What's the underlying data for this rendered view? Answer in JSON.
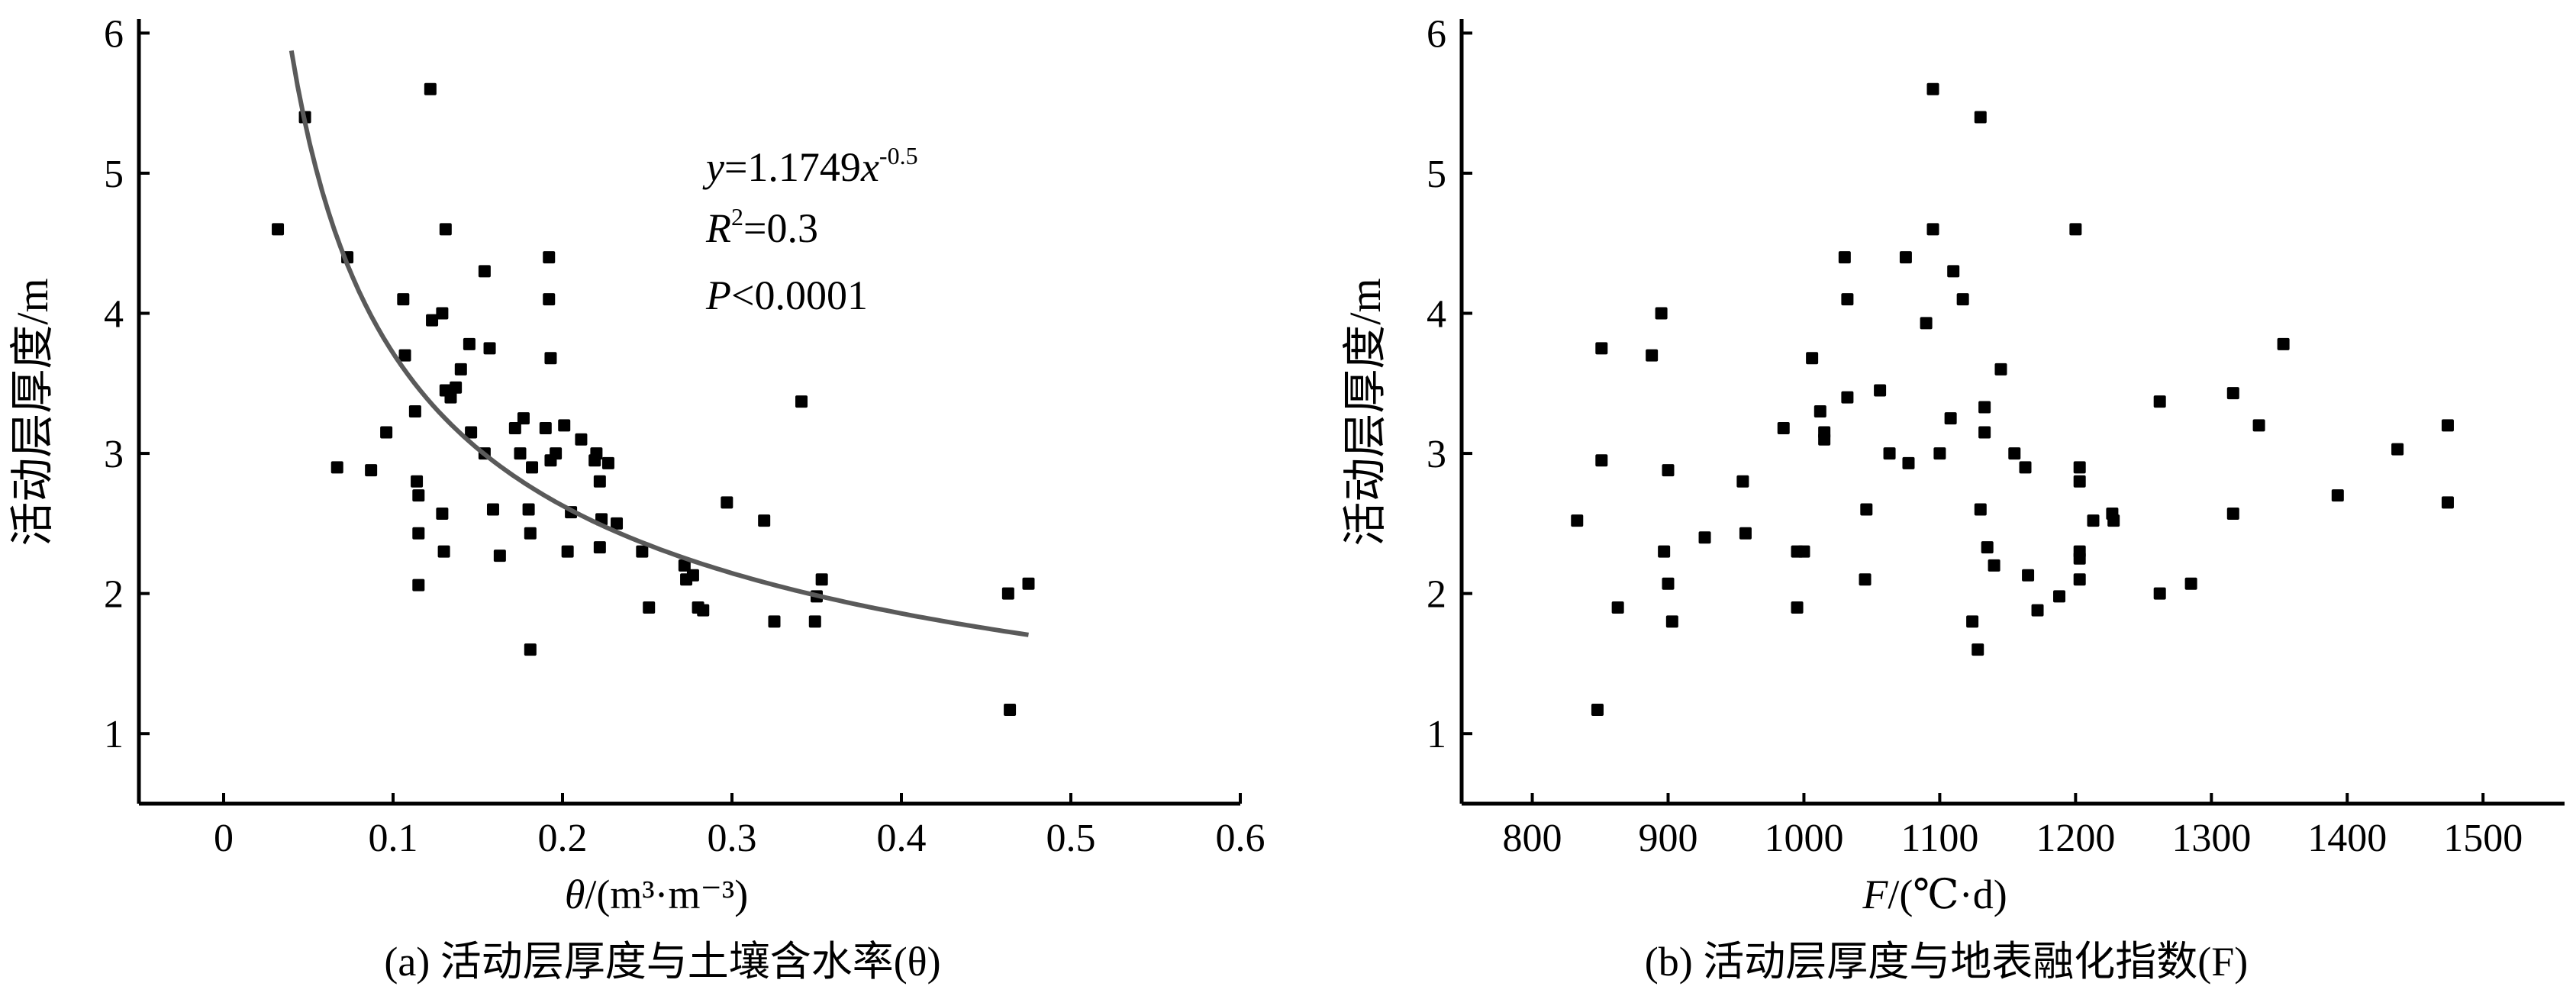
{
  "chart_data": [
    {
      "type": "scatter",
      "caption": "(a) 活动层厚度与土壤含水率(θ)",
      "xlabel_var": "θ",
      "xlabel_unit": "/(m³·m⁻³)",
      "ylabel": "活动层厚度/m",
      "xlim": [
        -0.05,
        0.6
      ],
      "ylim": [
        0.5,
        6.1
      ],
      "xticks": [
        "0",
        "0.1",
        "0.2",
        "0.3",
        "0.4",
        "0.5",
        "0.6"
      ],
      "yticks": [
        "1",
        "2",
        "3",
        "4",
        "5",
        "6"
      ],
      "grid": false,
      "annotation": {
        "eq_var": "y",
        "eq_mid": "=1.1749",
        "eq_x": "x",
        "eq_exp": "-0.5",
        "r2_var": "R",
        "r2_sup": "2",
        "r2_val": "=0.3",
        "p_var": "P",
        "p_val": "<0.0001"
      },
      "fit": {
        "a": 1.1749,
        "b": -0.5,
        "x_range": [
          0.04,
          0.475
        ]
      },
      "points": [
        [
          0.032,
          4.6
        ],
        [
          0.048,
          5.4
        ],
        [
          0.067,
          2.9
        ],
        [
          0.073,
          4.4
        ],
        [
          0.087,
          2.88
        ],
        [
          0.096,
          3.15
        ],
        [
          0.106,
          4.1
        ],
        [
          0.107,
          3.7
        ],
        [
          0.113,
          3.3
        ],
        [
          0.114,
          2.8
        ],
        [
          0.115,
          2.7
        ],
        [
          0.115,
          2.43
        ],
        [
          0.115,
          2.06
        ],
        [
          0.122,
          5.6
        ],
        [
          0.123,
          3.95
        ],
        [
          0.129,
          4.0
        ],
        [
          0.129,
          2.57
        ],
        [
          0.13,
          2.3
        ],
        [
          0.131,
          4.6
        ],
        [
          0.131,
          3.45
        ],
        [
          0.134,
          3.4
        ],
        [
          0.137,
          3.47
        ],
        [
          0.14,
          3.6
        ],
        [
          0.145,
          3.78
        ],
        [
          0.146,
          3.15
        ],
        [
          0.154,
          4.3
        ],
        [
          0.154,
          3.0
        ],
        [
          0.157,
          3.75
        ],
        [
          0.159,
          2.6
        ],
        [
          0.163,
          2.27
        ],
        [
          0.172,
          3.18
        ],
        [
          0.175,
          3.0
        ],
        [
          0.177,
          3.25
        ],
        [
          0.18,
          2.6
        ],
        [
          0.181,
          2.43
        ],
        [
          0.181,
          1.6
        ],
        [
          0.182,
          2.9
        ],
        [
          0.19,
          3.18
        ],
        [
          0.192,
          4.4
        ],
        [
          0.192,
          4.1
        ],
        [
          0.193,
          3.68
        ],
        [
          0.193,
          2.95
        ],
        [
          0.196,
          3.0
        ],
        [
          0.201,
          3.2
        ],
        [
          0.203,
          2.3
        ],
        [
          0.205,
          2.58
        ],
        [
          0.211,
          3.1
        ],
        [
          0.219,
          2.95
        ],
        [
          0.22,
          3.0
        ],
        [
          0.222,
          2.8
        ],
        [
          0.223,
          2.53
        ],
        [
          0.222,
          2.33
        ],
        [
          0.227,
          2.93
        ],
        [
          0.232,
          2.5
        ],
        [
          0.247,
          2.3
        ],
        [
          0.251,
          1.9
        ],
        [
          0.272,
          2.2
        ],
        [
          0.273,
          2.1
        ],
        [
          0.277,
          2.13
        ],
        [
          0.28,
          1.9
        ],
        [
          0.283,
          1.88
        ],
        [
          0.297,
          2.65
        ],
        [
          0.319,
          2.52
        ],
        [
          0.325,
          1.8
        ],
        [
          0.341,
          3.37
        ],
        [
          0.349,
          1.8
        ],
        [
          0.35,
          1.98
        ],
        [
          0.353,
          2.1
        ],
        [
          0.463,
          2.0
        ],
        [
          0.464,
          1.17
        ],
        [
          0.475,
          2.07
        ]
      ]
    },
    {
      "type": "scatter",
      "caption": "(b) 活动层厚度与地表融化指数(F)",
      "xlabel_var": "F",
      "xlabel_unit": "/(℃·d)",
      "ylabel": "活动层厚度/m",
      "xlim": [
        748,
        1560
      ],
      "ylim": [
        0.5,
        6.1
      ],
      "xticks": [
        "800",
        "900",
        "1000",
        "1100",
        "1200",
        "1300",
        "1400",
        "1500"
      ],
      "yticks": [
        "1",
        "2",
        "3",
        "4",
        "5",
        "6"
      ],
      "grid": false,
      "points": [
        [
          833,
          2.52
        ],
        [
          848,
          1.17
        ],
        [
          851,
          3.75
        ],
        [
          851,
          2.95
        ],
        [
          863,
          1.9
        ],
        [
          888,
          3.7
        ],
        [
          895,
          4.0
        ],
        [
          897,
          2.3
        ],
        [
          900,
          2.07
        ],
        [
          900,
          2.88
        ],
        [
          903,
          1.8
        ],
        [
          927,
          2.4
        ],
        [
          955,
          2.8
        ],
        [
          957,
          2.43
        ],
        [
          985,
          3.18
        ],
        [
          995,
          1.9
        ],
        [
          995,
          2.3
        ],
        [
          1000,
          2.3
        ],
        [
          1006,
          3.68
        ],
        [
          1012,
          3.3
        ],
        [
          1015,
          3.15
        ],
        [
          1015,
          3.1
        ],
        [
          1030,
          4.4
        ],
        [
          1032,
          4.1
        ],
        [
          1032,
          3.4
        ],
        [
          1045,
          2.1
        ],
        [
          1046,
          2.6
        ],
        [
          1056,
          3.45
        ],
        [
          1063,
          3.0
        ],
        [
          1075,
          4.4
        ],
        [
          1077,
          2.93
        ],
        [
          1090,
          3.93
        ],
        [
          1095,
          5.6
        ],
        [
          1095,
          4.6
        ],
        [
          1100,
          3.0
        ],
        [
          1108,
          3.25
        ],
        [
          1110,
          4.3
        ],
        [
          1117,
          4.1
        ],
        [
          1124,
          1.8
        ],
        [
          1128,
          1.6
        ],
        [
          1130,
          2.6
        ],
        [
          1130,
          5.4
        ],
        [
          1133,
          3.33
        ],
        [
          1133,
          3.15
        ],
        [
          1135,
          2.33
        ],
        [
          1140,
          2.2
        ],
        [
          1145,
          3.6
        ],
        [
          1155,
          3.0
        ],
        [
          1163,
          2.9
        ],
        [
          1165,
          2.13
        ],
        [
          1172,
          1.88
        ],
        [
          1188,
          1.98
        ],
        [
          1200,
          4.6
        ],
        [
          1203,
          2.9
        ],
        [
          1203,
          2.8
        ],
        [
          1203,
          2.3
        ],
        [
          1203,
          2.25
        ],
        [
          1203,
          2.1
        ],
        [
          1213,
          2.52
        ],
        [
          1227,
          2.57
        ],
        [
          1228,
          2.52
        ],
        [
          1262,
          2.0
        ],
        [
          1262,
          3.37
        ],
        [
          1285,
          2.07
        ],
        [
          1316,
          2.57
        ],
        [
          1316,
          3.43
        ],
        [
          1335,
          3.2
        ],
        [
          1353,
          3.78
        ],
        [
          1393,
          2.7
        ],
        [
          1437,
          3.03
        ],
        [
          1474,
          3.2
        ],
        [
          1474,
          2.65
        ]
      ]
    }
  ]
}
